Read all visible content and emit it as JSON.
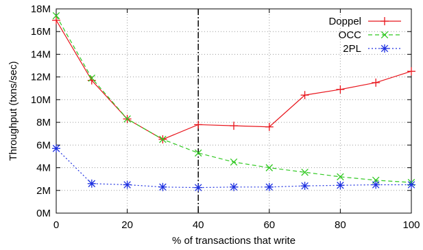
{
  "colors": {
    "doppel": "#e8141b",
    "occ": "#2ec81f",
    "twopl": "#1c2fe0",
    "grid": "#9a9a9a",
    "marker_line": "#111111"
  },
  "chart_data": {
    "type": "line",
    "xlabel": "% of transactions that write",
    "ylabel": "Throughput (txns/sec)",
    "xlim": [
      0,
      100
    ],
    "ylim": [
      0,
      18000000
    ],
    "x_ticks": [
      0,
      20,
      40,
      60,
      80,
      100
    ],
    "x_tick_labels": [
      "0",
      "20",
      "40",
      "60",
      "80",
      "100"
    ],
    "y_ticks": [
      0,
      2000000,
      4000000,
      6000000,
      8000000,
      10000000,
      12000000,
      14000000,
      16000000,
      18000000
    ],
    "y_tick_labels": [
      "0M",
      "2M",
      "4M",
      "6M",
      "8M",
      "10M",
      "12M",
      "14M",
      "16M",
      "18M"
    ],
    "grid": true,
    "legend_position": "top-right",
    "vertical_line_x": 40,
    "x": [
      0,
      10,
      20,
      30,
      40,
      50,
      60,
      70,
      80,
      90,
      100
    ],
    "series": [
      {
        "name": "Doppel",
        "color": "#e8141b",
        "marker": "plus",
        "line_style": "solid",
        "values": [
          17000000,
          11700000,
          8300000,
          6500000,
          7800000,
          7700000,
          7600000,
          10400000,
          10900000,
          11500000,
          12500000
        ]
      },
      {
        "name": "OCC",
        "color": "#2ec81f",
        "marker": "x",
        "line_style": "dashed",
        "values": [
          17400000,
          11900000,
          8300000,
          6500000,
          5300000,
          4500000,
          4000000,
          3600000,
          3200000,
          2900000,
          2700000
        ]
      },
      {
        "name": "2PL",
        "color": "#1c2fe0",
        "marker": "asterisk",
        "line_style": "dotted",
        "values": [
          5700000,
          2600000,
          2500000,
          2300000,
          2250000,
          2300000,
          2300000,
          2400000,
          2450000,
          2500000,
          2500000
        ]
      }
    ]
  }
}
